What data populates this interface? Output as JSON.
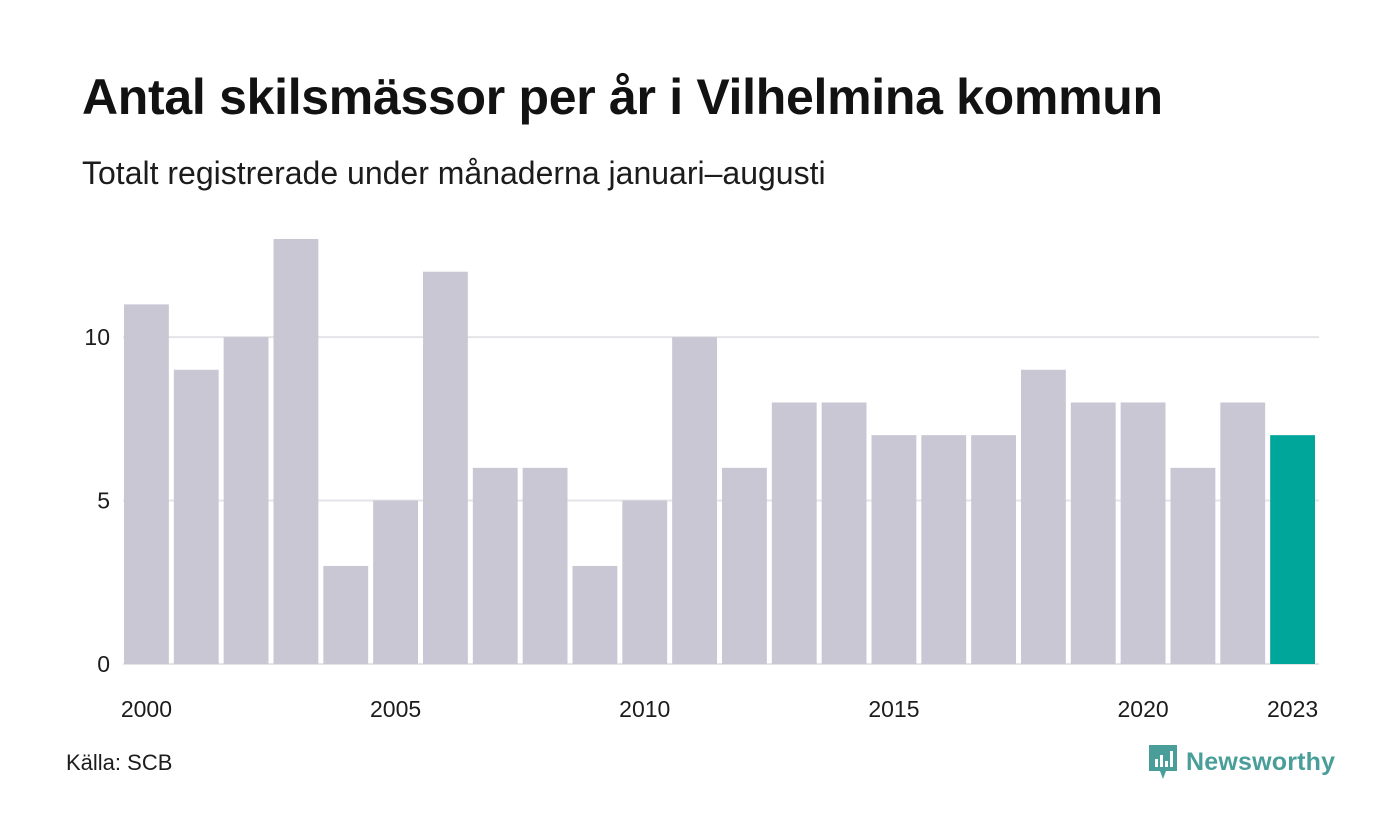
{
  "title": "Antal skilsmässor per år i Vilhelmina kommun",
  "subtitle": "Totalt registrerade under månaderna januari–augusti",
  "source": "Källa: SCB",
  "brand": {
    "name": "Newsworthy",
    "icon": "newsworthy-logo-icon",
    "color": "#4a9e9a"
  },
  "colors": {
    "bar": "#c8c7d3",
    "highlight": "#00a69a",
    "grid": "#e4e4e8",
    "text": "#1c1c1c"
  },
  "chart_data": {
    "type": "bar",
    "categories": [
      "2000",
      "2001",
      "2002",
      "2003",
      "2004",
      "2005",
      "2006",
      "2007",
      "2008",
      "2009",
      "2010",
      "2011",
      "2012",
      "2013",
      "2014",
      "2015",
      "2016",
      "2017",
      "2018",
      "2019",
      "2020",
      "2021",
      "2022",
      "2023"
    ],
    "values": [
      11,
      9,
      10,
      13,
      3,
      5,
      12,
      6,
      6,
      3,
      5,
      10,
      6,
      8,
      8,
      7,
      7,
      7,
      9,
      8,
      8,
      6,
      8,
      7
    ],
    "highlight": "2023",
    "x_tick_labels": [
      "2000",
      "2005",
      "2010",
      "2015",
      "2020",
      "2023"
    ],
    "y_ticks": [
      0,
      5,
      10
    ],
    "ylim": [
      0,
      13
    ],
    "grid": true,
    "legend": "none",
    "title": "Antal skilsmässor per år i Vilhelmina kommun",
    "subtitle": "Totalt registrerade under månaderna januari–augusti",
    "xlabel": "",
    "ylabel": ""
  }
}
